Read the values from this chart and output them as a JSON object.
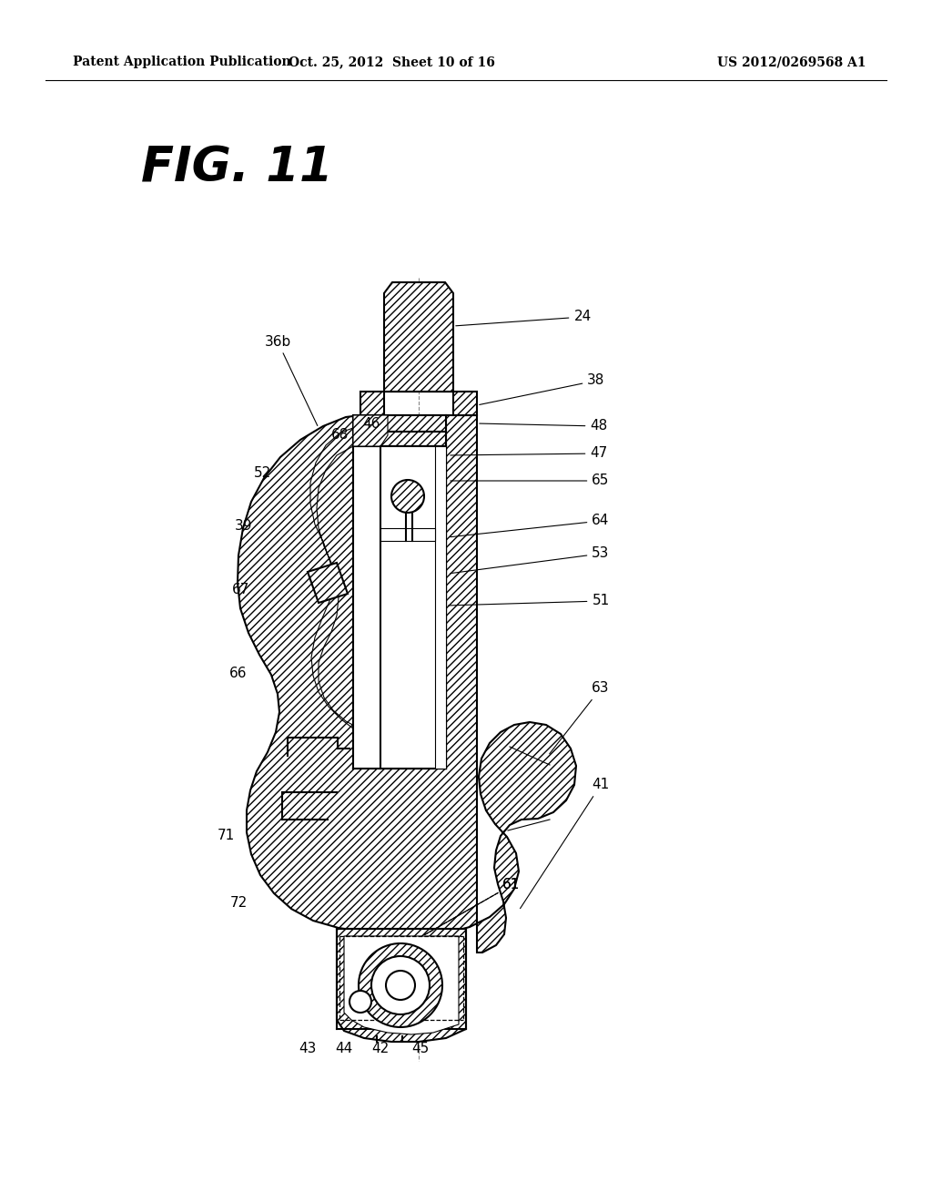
{
  "header_left": "Patent Application Publication",
  "header_mid": "Oct. 25, 2012  Sheet 10 of 16",
  "header_right": "US 2012/0269568 A1",
  "figure_label": "FIG. 11",
  "bg_color": "#ffffff",
  "line_color": "#000000"
}
